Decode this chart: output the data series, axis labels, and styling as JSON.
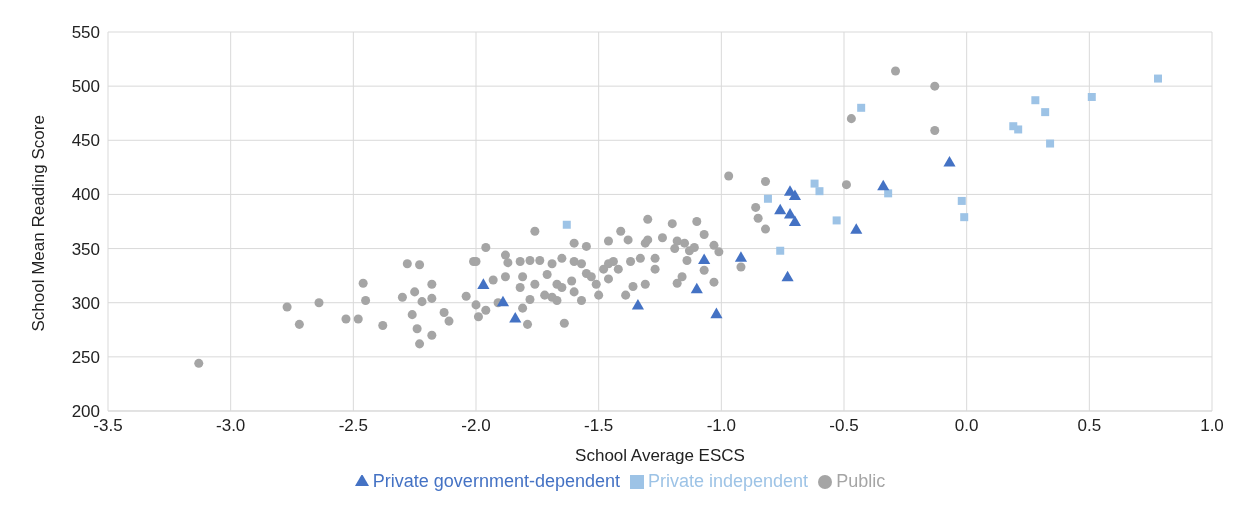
{
  "chart_data": {
    "type": "scatter",
    "xlabel": "School Average ESCS",
    "ylabel": "School Mean Reading Score",
    "xlim": [
      -3.5,
      1.0
    ],
    "ylim": [
      200,
      550
    ],
    "xticks": [
      -3.5,
      {
        "value": -3,
        "label": "-3.0"
      },
      -2.5,
      {
        "value": -2,
        "label": "-2.0"
      },
      -1.5,
      {
        "value": -1,
        "label": "-1.0"
      },
      -0.5,
      {
        "value": 0,
        "label": "0.0"
      },
      0.5,
      {
        "value": 1,
        "label": "1.0"
      }
    ],
    "yticks": [
      200,
      250,
      300,
      350,
      400,
      450,
      500,
      550
    ],
    "grid": true,
    "legend": "bottom",
    "series": [
      {
        "name": "Public",
        "color": "#a5a5a5",
        "marker": "circle",
        "x": [
          -3.13,
          -2.77,
          -2.72,
          -2.64,
          -2.53,
          -2.48,
          -2.46,
          -2.45,
          -2.38,
          -2.3,
          -2.28,
          -2.26,
          -2.25,
          -2.24,
          -2.23,
          -2.23,
          -2.22,
          -2.18,
          -2.18,
          -2.18,
          -2.13,
          -2.11,
          -2.04,
          -2.01,
          -2.0,
          -1.96,
          -2.0,
          -1.99,
          -1.96,
          -1.93,
          -1.76,
          -1.88,
          -1.87,
          -1.88,
          -1.82,
          -1.78,
          -1.74,
          -1.81,
          -1.82,
          -1.76,
          -1.71,
          -1.69,
          -1.65,
          -1.67,
          -1.69,
          -1.65,
          -1.61,
          -1.6,
          -1.6,
          -1.55,
          -1.57,
          -1.55,
          -1.6,
          -1.57,
          -1.53,
          -1.51,
          -1.5,
          -1.48,
          -1.46,
          -1.44,
          -1.46,
          -1.41,
          -1.38,
          -1.46,
          -1.42,
          -1.39,
          -1.36,
          -1.37,
          -1.33,
          -1.31,
          -1.3,
          -1.31,
          -1.3,
          -1.27,
          -1.27,
          -1.24,
          -1.2,
          -1.19,
          -1.18,
          -1.15,
          -1.14,
          -1.13,
          -1.1,
          -1.11,
          -1.07,
          -1.03,
          -1.01,
          -1.07,
          -1.03,
          -1.16,
          -1.18,
          -1.79,
          -1.64,
          -1.91,
          -1.81,
          -1.78,
          -1.72,
          -1.67,
          -0.97,
          -0.82,
          -0.86,
          -0.85,
          -0.82,
          -0.92,
          -0.49,
          -0.47,
          -0.29,
          -0.13,
          -0.13
        ],
        "values": [
          244,
          296,
          280,
          300,
          285,
          285,
          318,
          302,
          279,
          305,
          336,
          289,
          310,
          276,
          262,
          335,
          301,
          317,
          304,
          270,
          291,
          283,
          306,
          338,
          338,
          351,
          298,
          287,
          293,
          321,
          366,
          344,
          337,
          324,
          338,
          339,
          339,
          324,
          314,
          317,
          326,
          336,
          341,
          317,
          305,
          314,
          320,
          338,
          355,
          352,
          336,
          327,
          310,
          302,
          324,
          317,
          307,
          331,
          336,
          338,
          357,
          366,
          358,
          322,
          331,
          307,
          315,
          338,
          341,
          355,
          358,
          317,
          377,
          341,
          331,
          360,
          373,
          350,
          357,
          355,
          339,
          348,
          375,
          351,
          363,
          353,
          347,
          330,
          319,
          324,
          318,
          280,
          281,
          300,
          295,
          303,
          307,
          302,
          417,
          412,
          388,
          378,
          368,
          333,
          409,
          470,
          514,
          500,
          459
        ]
      },
      {
        "name": "Private independent",
        "color": "#9dc3e6",
        "marker": "square",
        "x": [
          0.78,
          0.51,
          0.34,
          0.32,
          0.28,
          0.21,
          0.19,
          -0.01,
          -0.02,
          -0.32,
          -0.43,
          -0.53,
          -0.6,
          -0.62,
          -0.81,
          -0.76,
          -1.63
        ],
        "values": [
          507,
          490,
          447,
          476,
          487,
          460,
          463,
          379,
          394,
          401,
          480,
          376,
          403,
          410,
          396,
          348,
          372
        ]
      },
      {
        "name": "Private government-dependent",
        "color": "#4472c4",
        "marker": "triangle",
        "x": [
          -1.97,
          -1.89,
          -1.84,
          -1.34,
          -1.1,
          -1.07,
          -1.02,
          -0.92,
          -0.76,
          -0.73,
          -0.72,
          -0.72,
          -0.7,
          -0.7,
          -0.45,
          -0.34,
          -0.07
        ],
        "values": [
          316,
          300,
          285,
          297,
          312,
          339,
          289,
          341,
          385,
          323,
          402,
          381,
          398,
          374,
          367,
          407,
          429
        ]
      }
    ]
  }
}
